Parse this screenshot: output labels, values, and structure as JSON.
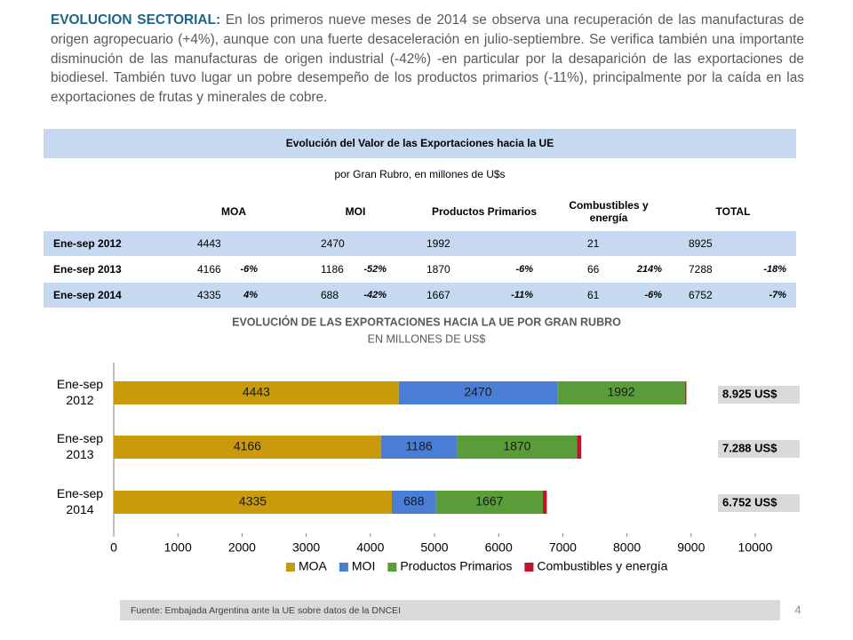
{
  "paragraph": {
    "lead": "EVOLUCION SECTORIAL:",
    "text": "En los primeros nueve meses de 2014 se observa una recuperación de las manufacturas de origen agropecuario (+4%), aunque con una fuerte desaceleración en julio-septiembre. Se verifica también una importante disminución de las manufacturas de origen industrial (-42%) -en particular por la desaparición de las exportaciones de biodiesel. También tuvo lugar un pobre desempeño de los productos primarios (-11%), principalmente por la caída en las exportaciones de frutas y minerales de cobre."
  },
  "table": {
    "title": "Evolución del Valor de las Exportaciones hacia la UE",
    "subtitle": "por Gran Rubro, en millones de U$s",
    "headers": [
      "MOA",
      "MOI",
      "Productos Primarios",
      "Combustibles y energía",
      "TOTAL"
    ],
    "rows": [
      {
        "label": "Ene-sep 2012",
        "cells": [
          {
            "value": 4443
          },
          {
            "value": 2470
          },
          {
            "value": 1992
          },
          {
            "value": 21
          },
          {
            "value": 8925
          }
        ]
      },
      {
        "label": "Ene-sep 2013",
        "cells": [
          {
            "value": 4166,
            "change": "-6%"
          },
          {
            "value": 1186,
            "change": "-52%"
          },
          {
            "value": 1870,
            "change": "-6%"
          },
          {
            "value": 66,
            "change": "214%"
          },
          {
            "value": 7288,
            "change": "-18%"
          }
        ]
      },
      {
        "label": "Ene-sep 2014",
        "cells": [
          {
            "value": 4335,
            "change": "4%"
          },
          {
            "value": 688,
            "change": "-42%"
          },
          {
            "value": 1667,
            "change": "-11%"
          },
          {
            "value": 61,
            "change": "-6%"
          },
          {
            "value": 6752,
            "change": "-7%"
          }
        ]
      }
    ]
  },
  "chart_data": {
    "type": "stacked-bar-horizontal",
    "title": "EVOLUCIÓN DE LAS EXPORTACIONES HACIA LA UE POR GRAN RUBRO",
    "subtitle": "EN MILLONES DE US$",
    "categories": [
      "Ene-sep 2012",
      "Ene-sep 2013",
      "Ene-sep 2014"
    ],
    "series": [
      {
        "name": "MOA",
        "color": "#c99a0c",
        "values": [
          4443,
          4166,
          4335
        ],
        "show_labels": true
      },
      {
        "name": "MOI",
        "color": "#4a7ed6",
        "values": [
          2470,
          1186,
          688
        ],
        "show_labels": true
      },
      {
        "name": "Productos Primarios",
        "color": "#5b9c3a",
        "values": [
          1992,
          1870,
          1667
        ],
        "show_labels": true
      },
      {
        "name": "Combustibles y energía",
        "color": "#c0142a",
        "values": [
          21,
          66,
          61
        ],
        "show_labels": false
      }
    ],
    "annotations": [
      "8.925 US$",
      "7.288 US$",
      "6.752 US$"
    ],
    "xlim": [
      0,
      10000
    ],
    "xticks": [
      0,
      1000,
      2000,
      3000,
      4000,
      5000,
      6000,
      7000,
      8000,
      9000,
      10000
    ],
    "grid": false,
    "legend": "bottom"
  },
  "source": "Fuente: Embajada Argentina ante la UE sobre datos de la DNCEI",
  "page_number": "4"
}
